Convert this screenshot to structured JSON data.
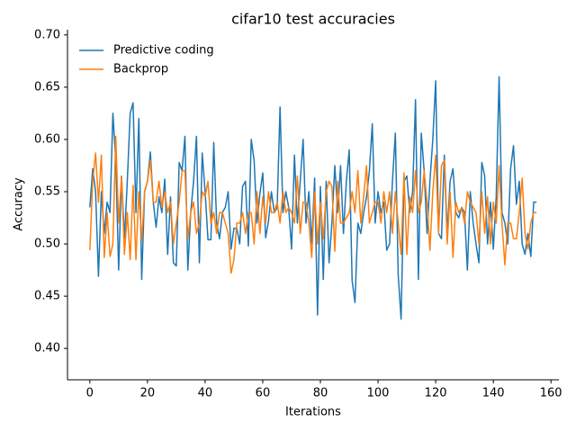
{
  "chart_data": {
    "type": "line",
    "title": "cifar10 test accuracies",
    "x_label": "Iterations",
    "y_label": "Accuracy",
    "x": [
      0,
      1,
      2,
      3,
      4,
      5,
      6,
      7,
      8,
      9,
      10,
      11,
      12,
      13,
      14,
      15,
      16,
      17,
      18,
      19,
      20,
      21,
      22,
      23,
      24,
      25,
      26,
      27,
      28,
      29,
      30,
      31,
      32,
      33,
      34,
      35,
      36,
      37,
      38,
      39,
      40,
      41,
      42,
      43,
      44,
      45,
      46,
      47,
      48,
      49,
      50,
      51,
      52,
      53,
      54,
      55,
      56,
      57,
      58,
      59,
      60,
      61,
      62,
      63,
      64,
      65,
      66,
      67,
      68,
      69,
      70,
      71,
      72,
      73,
      74,
      75,
      76,
      77,
      78,
      79,
      80,
      81,
      82,
      83,
      84,
      85,
      86,
      87,
      88,
      89,
      90,
      91,
      92,
      93,
      94,
      95,
      96,
      97,
      98,
      99,
      100,
      101,
      102,
      103,
      104,
      105,
      106,
      107,
      108,
      109,
      110,
      111,
      112,
      113,
      114,
      115,
      116,
      117,
      118,
      119,
      120,
      121,
      122,
      123,
      124,
      125,
      126,
      127,
      128,
      129,
      130,
      131,
      132,
      133,
      134,
      135,
      136,
      137,
      138,
      139,
      140,
      141,
      142,
      143,
      144,
      145,
      146,
      147,
      148,
      149,
      150,
      151,
      152,
      153,
      154,
      155
    ],
    "series": [
      {
        "name": "Predictive coding",
        "color": "#1f77b4",
        "values": [
          0.535,
          0.572,
          0.55,
          0.469,
          0.55,
          0.51,
          0.54,
          0.53,
          0.625,
          0.58,
          0.475,
          0.565,
          0.505,
          0.56,
          0.625,
          0.635,
          0.53,
          0.62,
          0.466,
          0.55,
          0.56,
          0.588,
          0.54,
          0.516,
          0.545,
          0.53,
          0.562,
          0.49,
          0.545,
          0.482,
          0.479,
          0.578,
          0.57,
          0.603,
          0.475,
          0.53,
          0.56,
          0.603,
          0.482,
          0.587,
          0.55,
          0.504,
          0.504,
          0.597,
          0.52,
          0.505,
          0.53,
          0.535,
          0.55,
          0.495,
          0.515,
          0.515,
          0.5,
          0.555,
          0.56,
          0.498,
          0.6,
          0.58,
          0.52,
          0.548,
          0.568,
          0.506,
          0.522,
          0.55,
          0.53,
          0.535,
          0.631,
          0.53,
          0.55,
          0.535,
          0.495,
          0.585,
          0.52,
          0.56,
          0.6,
          0.52,
          0.55,
          0.5,
          0.563,
          0.432,
          0.555,
          0.466,
          0.56,
          0.482,
          0.52,
          0.575,
          0.53,
          0.575,
          0.51,
          0.56,
          0.59,
          0.465,
          0.444,
          0.52,
          0.51,
          0.53,
          0.545,
          0.57,
          0.615,
          0.52,
          0.55,
          0.53,
          0.54,
          0.494,
          0.5,
          0.56,
          0.606,
          0.47,
          0.428,
          0.56,
          0.565,
          0.53,
          0.55,
          0.638,
          0.466,
          0.606,
          0.57,
          0.51,
          0.56,
          0.6,
          0.656,
          0.51,
          0.505,
          0.585,
          0.51,
          0.56,
          0.572,
          0.53,
          0.525,
          0.535,
          0.53,
          0.475,
          0.55,
          0.52,
          0.5,
          0.482,
          0.578,
          0.565,
          0.5,
          0.54,
          0.495,
          0.545,
          0.66,
          0.53,
          0.52,
          0.5,
          0.572,
          0.594,
          0.538,
          0.56,
          0.5,
          0.49,
          0.51,
          0.488,
          0.54,
          0.54
        ]
      },
      {
        "name": "Backprop",
        "color": "#ff7f0e",
        "values": [
          0.494,
          0.56,
          0.587,
          0.54,
          0.585,
          0.487,
          0.53,
          0.488,
          0.5,
          0.603,
          0.52,
          0.565,
          0.49,
          0.53,
          0.485,
          0.556,
          0.485,
          0.55,
          0.503,
          0.55,
          0.56,
          0.58,
          0.54,
          0.54,
          0.56,
          0.535,
          0.55,
          0.53,
          0.54,
          0.5,
          0.52,
          0.54,
          0.57,
          0.57,
          0.505,
          0.53,
          0.54,
          0.51,
          0.52,
          0.55,
          0.545,
          0.56,
          0.52,
          0.53,
          0.51,
          0.53,
          0.53,
          0.52,
          0.51,
          0.472,
          0.485,
          0.52,
          0.52,
          0.53,
          0.51,
          0.53,
          0.53,
          0.5,
          0.55,
          0.51,
          0.545,
          0.52,
          0.55,
          0.53,
          0.53,
          0.54,
          0.52,
          0.55,
          0.53,
          0.535,
          0.53,
          0.52,
          0.565,
          0.51,
          0.54,
          0.54,
          0.52,
          0.487,
          0.55,
          0.5,
          0.54,
          0.505,
          0.55,
          0.56,
          0.555,
          0.493,
          0.56,
          0.52,
          0.52,
          0.525,
          0.53,
          0.55,
          0.53,
          0.57,
          0.52,
          0.545,
          0.575,
          0.52,
          0.53,
          0.54,
          0.54,
          0.52,
          0.55,
          0.53,
          0.55,
          0.51,
          0.55,
          0.52,
          0.49,
          0.568,
          0.49,
          0.545,
          0.53,
          0.57,
          0.53,
          0.54,
          0.57,
          0.54,
          0.494,
          0.55,
          0.585,
          0.51,
          0.575,
          0.58,
          0.5,
          0.55,
          0.487,
          0.54,
          0.53,
          0.535,
          0.52,
          0.55,
          0.54,
          0.535,
          0.53,
          0.5,
          0.55,
          0.51,
          0.545,
          0.5,
          0.54,
          0.52,
          0.575,
          0.52,
          0.48,
          0.52,
          0.52,
          0.505,
          0.505,
          0.53,
          0.563,
          0.51,
          0.495,
          0.52,
          0.53,
          0.53
        ]
      }
    ],
    "xlim": [
      -7.75,
      162.75
    ],
    "ylim": [
      0.37,
      0.705
    ],
    "xticks": [
      0,
      20,
      40,
      60,
      80,
      100,
      120,
      140,
      160
    ],
    "yticks": [
      {
        "value": 0.4,
        "label": "0.40"
      },
      {
        "value": 0.45,
        "label": "0.45"
      },
      {
        "value": 0.5,
        "label": "0.50"
      },
      {
        "value": 0.55,
        "label": "0.55"
      },
      {
        "value": 0.6,
        "label": "0.60"
      },
      {
        "value": 0.65,
        "label": "0.65"
      },
      {
        "value": 0.7,
        "label": "0.70"
      }
    ],
    "legend": "upper left"
  }
}
